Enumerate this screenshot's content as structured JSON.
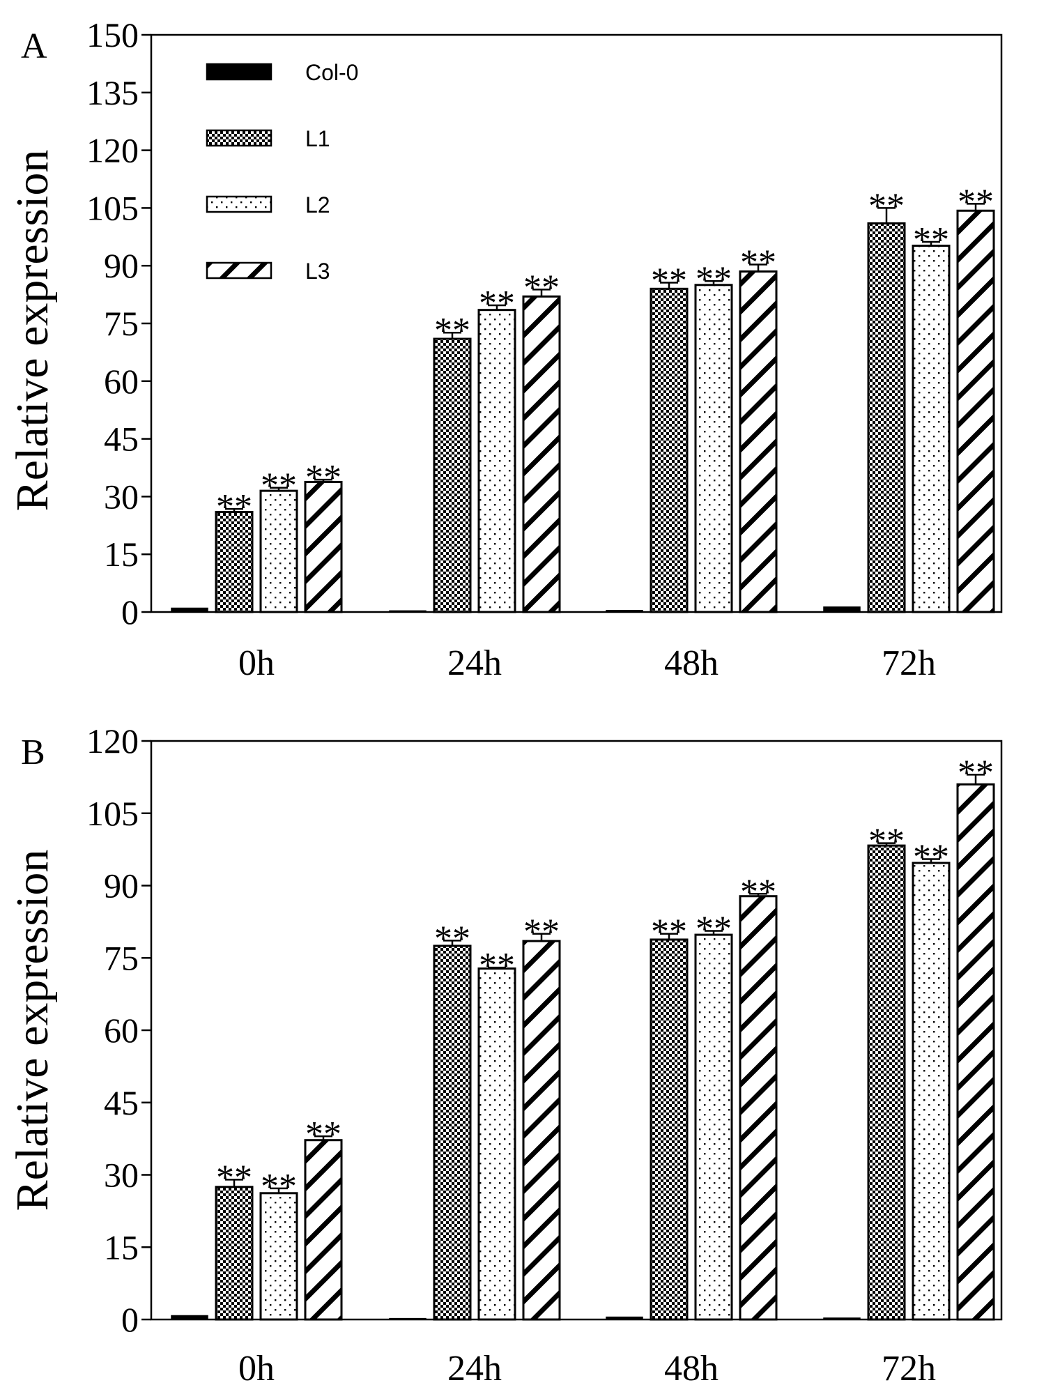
{
  "chart_data": [
    {
      "type": "bar",
      "panel_label": "A",
      "ylabel": "Relative expression",
      "xlabel": "",
      "ylim": [
        0,
        150
      ],
      "yticks": [
        0,
        15,
        30,
        45,
        60,
        75,
        90,
        105,
        120,
        135,
        150
      ],
      "categories": [
        "0h",
        "24h",
        "48h",
        "72h"
      ],
      "legend": {
        "position": "top-left",
        "entries": [
          "Col-0",
          "L1",
          "L2",
          "L3"
        ]
      },
      "series": [
        {
          "name": "Col-0",
          "pattern": "solid",
          "values": [
            1,
            0.3,
            0.4,
            1.3
          ],
          "errors": [
            0,
            0,
            0,
            0
          ],
          "sig": [
            "",
            "",
            "",
            ""
          ]
        },
        {
          "name": "L1",
          "pattern": "checker",
          "values": [
            26,
            71,
            84,
            101
          ],
          "errors": [
            0.8,
            1.6,
            1.6,
            4
          ],
          "sig": [
            "**",
            "**",
            "**",
            "**"
          ]
        },
        {
          "name": "L2",
          "pattern": "dots",
          "values": [
            31.5,
            78.5,
            85,
            95.2
          ],
          "errors": [
            0.8,
            1.2,
            1,
            1
          ],
          "sig": [
            "**",
            "**",
            "**",
            "**"
          ]
        },
        {
          "name": "L3",
          "pattern": "hatch",
          "values": [
            33.8,
            82,
            88.5,
            104.3
          ],
          "errors": [
            0.6,
            1.8,
            1.8,
            1.8
          ],
          "sig": [
            "**",
            "**",
            "**",
            "**"
          ]
        }
      ]
    },
    {
      "type": "bar",
      "panel_label": "B",
      "ylabel": "Relative expression",
      "xlabel": "",
      "ylim": [
        0,
        120
      ],
      "yticks": [
        0,
        15,
        30,
        45,
        60,
        75,
        90,
        105,
        120
      ],
      "categories": [
        "0h",
        "24h",
        "48h",
        "72h"
      ],
      "legend": null,
      "series": [
        {
          "name": "Col-0",
          "pattern": "solid",
          "values": [
            0.8,
            0.2,
            0.5,
            0.3
          ],
          "errors": [
            0,
            0,
            0,
            0
          ],
          "sig": [
            "",
            "",
            "",
            ""
          ]
        },
        {
          "name": "L1",
          "pattern": "checker",
          "values": [
            27.5,
            77.5,
            78.8,
            98.3
          ],
          "errors": [
            1.5,
            1.1,
            1.2,
            0.5
          ],
          "sig": [
            "**",
            "**",
            "**",
            "**"
          ]
        },
        {
          "name": "L2",
          "pattern": "dots",
          "values": [
            26.2,
            72.8,
            79.8,
            94.7
          ],
          "errors": [
            1,
            0.2,
            0.8,
            0.8
          ],
          "sig": [
            "**",
            "**",
            "**",
            "**"
          ]
        },
        {
          "name": "L3",
          "pattern": "hatch",
          "values": [
            37.2,
            78.5,
            87.8,
            111
          ],
          "errors": [
            0.8,
            1.5,
            0.5,
            2
          ],
          "sig": [
            "**",
            "**",
            "**",
            "**"
          ]
        }
      ]
    }
  ]
}
